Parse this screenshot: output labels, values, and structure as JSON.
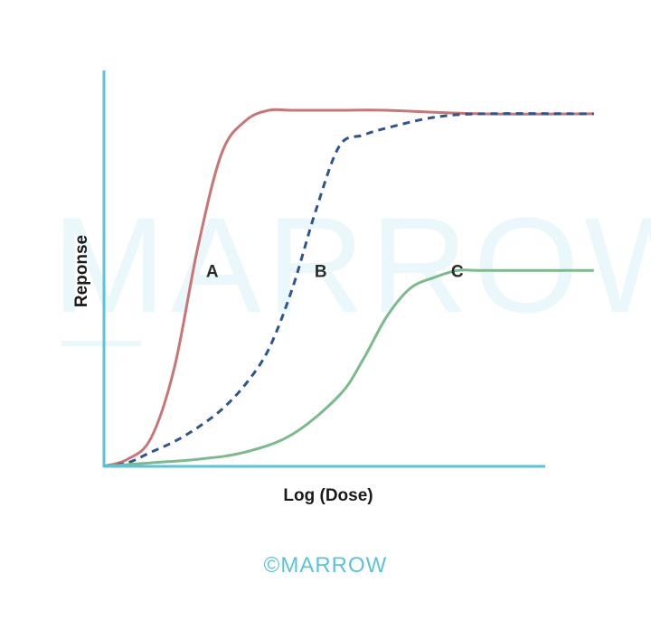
{
  "colors": {
    "axis": "#5bc3d9",
    "watermark": "#eaf7fb",
    "footer": "#5bc3d9"
  },
  "watermark": "MARROW",
  "footer": {
    "text": "©MARROW"
  },
  "chart_data": {
    "type": "line",
    "title": "",
    "xlabel": "Log (Dose)",
    "ylabel": "Reponse",
    "xlim": [
      0,
      10
    ],
    "ylim": [
      0,
      1.1
    ],
    "grid": false,
    "series": [
      {
        "name": "A",
        "color": "#c97575",
        "dash": false,
        "x": [
          0,
          0.5,
          1.0,
          1.5,
          2.0,
          2.5,
          3.0,
          3.5,
          4.0,
          5.0,
          6.0,
          8.0,
          10.4
        ],
        "y": [
          0,
          0.02,
          0.08,
          0.28,
          0.62,
          0.88,
          0.97,
          1.0,
          1.0,
          1.0,
          1.0,
          0.99,
          0.99
        ]
      },
      {
        "name": "B",
        "color": "#2f5590",
        "dash": true,
        "x": [
          0,
          0.5,
          1.0,
          1.5,
          2.0,
          2.5,
          3.0,
          3.5,
          4.0,
          4.5,
          5.0,
          5.5,
          6.0,
          7.0,
          8.0,
          10.4
        ],
        "y": [
          0,
          0.01,
          0.04,
          0.07,
          0.11,
          0.16,
          0.23,
          0.33,
          0.5,
          0.72,
          0.9,
          0.93,
          0.95,
          0.98,
          0.99,
          0.99
        ]
      },
      {
        "name": "C",
        "color": "#7cba8c",
        "dash": false,
        "x": [
          0,
          1.0,
          2.0,
          3.0,
          4.0,
          5.0,
          5.5,
          6.0,
          6.5,
          7.0,
          7.5,
          8.0,
          9.0,
          10.4
        ],
        "y": [
          0,
          0.01,
          0.02,
          0.04,
          0.09,
          0.2,
          0.3,
          0.42,
          0.5,
          0.53,
          0.55,
          0.55,
          0.55,
          0.55
        ]
      }
    ],
    "labels": [
      {
        "text": "A",
        "x": 2.3,
        "y": 0.55
      },
      {
        "text": "B",
        "x": 4.6,
        "y": 0.55
      },
      {
        "text": "C",
        "x": 7.5,
        "y": 0.55
      }
    ]
  }
}
